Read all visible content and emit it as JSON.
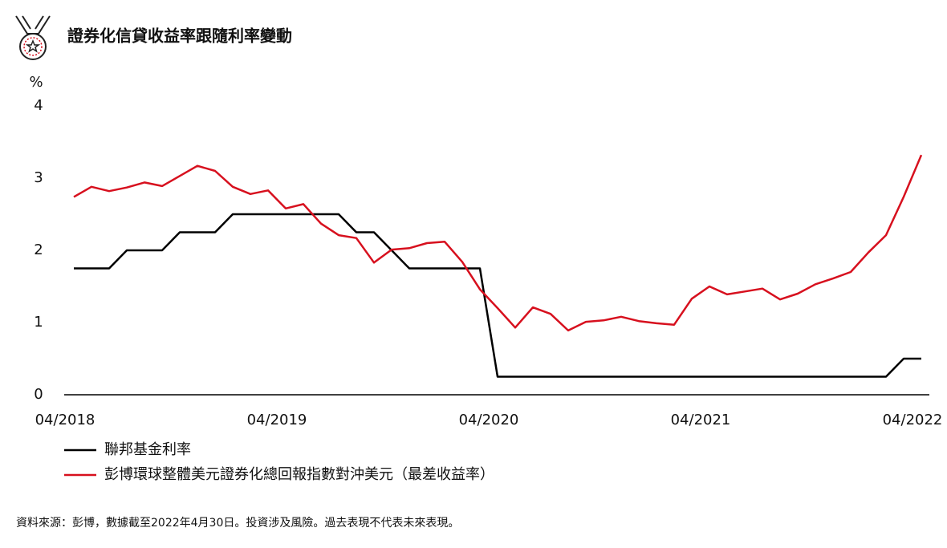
{
  "chart_data": {
    "type": "line",
    "title": "證券化信貸收益率跟隨利率變動",
    "y_label": "%",
    "categories": [
      "04/2018",
      null,
      null,
      null,
      null,
      null,
      null,
      null,
      null,
      null,
      null,
      null,
      "04/2019",
      null,
      null,
      null,
      null,
      null,
      null,
      null,
      null,
      null,
      null,
      null,
      "04/2020",
      null,
      null,
      null,
      null,
      null,
      null,
      null,
      null,
      null,
      null,
      null,
      "04/2021",
      null,
      null,
      null,
      null,
      null,
      null,
      null,
      null,
      null,
      null,
      null,
      "04/2022"
    ],
    "series": [
      {
        "name": "聯邦基金利率",
        "color": "#000000",
        "values": [
          1.75,
          1.75,
          1.75,
          2.0,
          2.0,
          2.0,
          2.25,
          2.25,
          2.25,
          2.5,
          2.5,
          2.5,
          2.5,
          2.5,
          2.5,
          2.5,
          2.25,
          2.25,
          2.0,
          1.75,
          1.75,
          1.75,
          1.75,
          1.75,
          0.25,
          0.25,
          0.25,
          0.25,
          0.25,
          0.25,
          0.25,
          0.25,
          0.25,
          0.25,
          0.25,
          0.25,
          0.25,
          0.25,
          0.25,
          0.25,
          0.25,
          0.25,
          0.25,
          0.25,
          0.25,
          0.25,
          0.25,
          0.5,
          0.5
        ]
      },
      {
        "name": "彭博環球整體美元證券化總回報指數對沖美元（最差收益率）",
        "color": "#d7101e",
        "values": [
          2.74,
          2.88,
          2.82,
          2.87,
          2.94,
          2.89,
          3.03,
          3.17,
          3.1,
          2.88,
          2.78,
          2.83,
          2.58,
          2.64,
          2.37,
          2.21,
          2.17,
          1.83,
          2.01,
          2.03,
          2.1,
          2.12,
          1.84,
          1.46,
          1.2,
          0.93,
          1.21,
          1.12,
          0.89,
          1.01,
          1.03,
          1.08,
          1.02,
          0.99,
          0.97,
          1.33,
          1.5,
          1.39,
          1.43,
          1.47,
          1.32,
          1.4,
          1.53,
          1.61,
          1.7,
          1.97,
          2.21,
          2.74,
          3.32
        ]
      }
    ],
    "ylim": [
      0,
      4
    ],
    "yticks": [
      0,
      1,
      2,
      3,
      4
    ],
    "grid": false,
    "note": "資料來源：彭博，數據截至2022年4月30日。投資涉及風險。過去表現不代表未來表現。"
  }
}
